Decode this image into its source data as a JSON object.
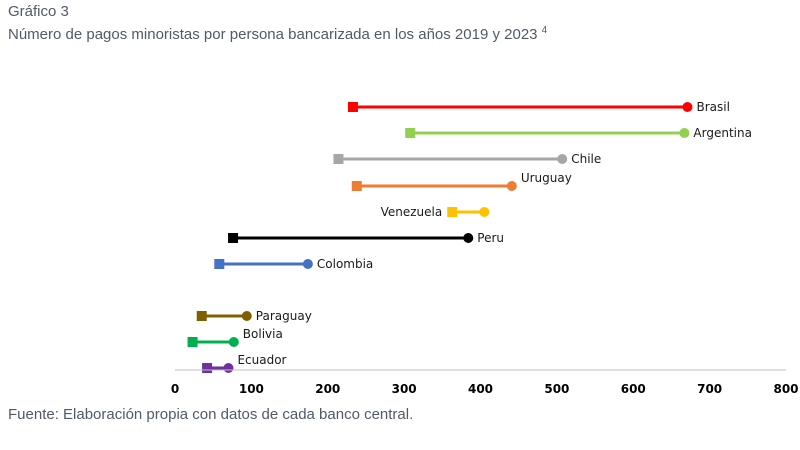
{
  "figure": {
    "title": "Gráfico 3",
    "subtitle": "Número de pagos minoristas por persona bancarizada en los años 2019 y 2023",
    "footnote_ref": "4",
    "source": "Fuente: Elaboración propia con datos de cada banco central."
  },
  "chart_data": {
    "type": "dumbbell",
    "title": "Número de pagos minoristas por persona bancarizada en los años 2019 y 2023",
    "xlabel": "",
    "ylabel": "",
    "xlim": [
      0,
      800
    ],
    "xticks": [
      0,
      100,
      200,
      300,
      400,
      500,
      600,
      700,
      800
    ],
    "start_year": "2019",
    "end_year": "2023",
    "series": [
      {
        "name": "Brasil",
        "start": 233,
        "end": 671,
        "color": "#ff0000"
      },
      {
        "name": "Argentina",
        "start": 308,
        "end": 667,
        "color": "#92d050"
      },
      {
        "name": "Chile",
        "start": 214,
        "end": 507,
        "color": "#a6a6a6"
      },
      {
        "name": "Uruguay",
        "start": 238,
        "end": 441,
        "color": "#ed7d31"
      },
      {
        "name": "Venezuela",
        "start": 363,
        "end": 405,
        "color": "#ffc000"
      },
      {
        "name": "Peru",
        "start": 76,
        "end": 384,
        "color": "#000000"
      },
      {
        "name": "Colombia",
        "start": 58,
        "end": 174,
        "color": "#4472c4"
      },
      {
        "name": "Paraguay",
        "start": 35,
        "end": 94,
        "color": "#7f6000"
      },
      {
        "name": "Bolivia",
        "start": 23,
        "end": 77,
        "color": "#00b050"
      },
      {
        "name": "Ecuador",
        "start": 42,
        "end": 70,
        "color": "#7030a0"
      }
    ]
  }
}
